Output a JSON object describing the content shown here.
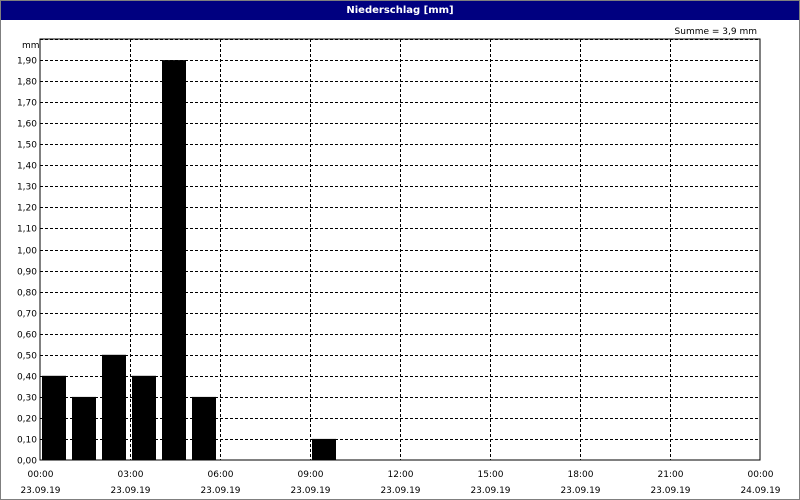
{
  "window": {
    "title": "Niederschlag [mm]"
  },
  "summary": "Summe = 3,9 mm",
  "colors": {
    "titlebar": "#000080",
    "bars": "#000000",
    "grid": "#000000"
  },
  "chart_data": {
    "type": "bar",
    "title": "Niederschlag [mm]",
    "ylabel": "mm",
    "xlabel": "",
    "ylim": [
      0,
      2.0
    ],
    "y_ticks": [
      "0,00",
      "0,10",
      "0,20",
      "0,30",
      "0,40",
      "0,50",
      "0,60",
      "0,70",
      "0,80",
      "0,90",
      "1,00",
      "1,10",
      "1,20",
      "1,30",
      "1,40",
      "1,50",
      "1,60",
      "1,70",
      "1,80",
      "1,90"
    ],
    "x_ticks": [
      {
        "time": "00:00",
        "date": "23.09.19"
      },
      {
        "time": "03:00",
        "date": "23.09.19"
      },
      {
        "time": "06:00",
        "date": "23.09.19"
      },
      {
        "time": "09:00",
        "date": "23.09.19"
      },
      {
        "time": "12:00",
        "date": "23.09.19"
      },
      {
        "time": "15:00",
        "date": "23.09.19"
      },
      {
        "time": "18:00",
        "date": "23.09.19"
      },
      {
        "time": "21:00",
        "date": "23.09.19"
      },
      {
        "time": "00:00",
        "date": "24.09.19"
      }
    ],
    "grid": true,
    "categories": [
      "00:00",
      "01:00",
      "02:00",
      "03:00",
      "04:00",
      "05:00",
      "06:00",
      "07:00",
      "08:00",
      "09:00",
      "10:00",
      "11:00",
      "12:00",
      "13:00",
      "14:00",
      "15:00",
      "16:00",
      "17:00",
      "18:00",
      "19:00",
      "20:00",
      "21:00",
      "22:00",
      "23:00"
    ],
    "values": [
      0.4,
      0.3,
      0.5,
      0.4,
      1.9,
      0.3,
      0,
      0,
      0,
      0.1,
      0,
      0,
      0,
      0,
      0,
      0,
      0,
      0,
      0,
      0,
      0,
      0,
      0,
      0
    ]
  }
}
